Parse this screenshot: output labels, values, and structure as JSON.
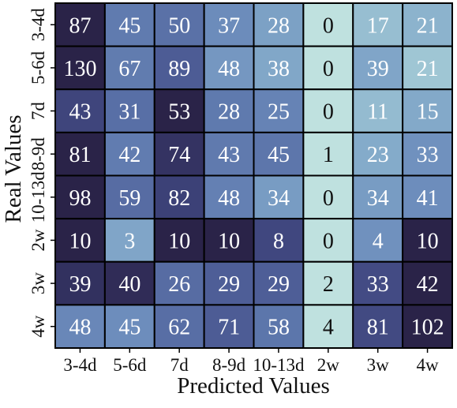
{
  "chart_data": {
    "type": "heatmap",
    "title": "",
    "xlabel": "Predicted Values",
    "ylabel": "Real Values",
    "x_categories": [
      "3-4d",
      "5-6d",
      "7d",
      "8-9d",
      "10-13d",
      "2w",
      "3w",
      "4w"
    ],
    "y_categories": [
      "3-4d",
      "5-6d",
      "7d",
      "8-9d",
      "10-13d",
      "2w",
      "3w",
      "4w"
    ],
    "values": [
      [
        87,
        45,
        50,
        37,
        28,
        0,
        17,
        21
      ],
      [
        130,
        67,
        89,
        48,
        38,
        0,
        39,
        21
      ],
      [
        43,
        31,
        53,
        28,
        25,
        0,
        11,
        15
      ],
      [
        81,
        42,
        74,
        43,
        45,
        1,
        23,
        33
      ],
      [
        98,
        59,
        82,
        48,
        34,
        0,
        34,
        41
      ],
      [
        10,
        3,
        10,
        10,
        8,
        0,
        4,
        10
      ],
      [
        39,
        40,
        26,
        29,
        29,
        2,
        33,
        42
      ],
      [
        48,
        45,
        62,
        71,
        58,
        4,
        81,
        102
      ]
    ],
    "colormap": {
      "normalization": "per-row",
      "stops": [
        "#bfe1df",
        "#a3cbd6",
        "#82a8c9",
        "#6b8bbb",
        "#5a72a8",
        "#4a5690",
        "#3a3d73",
        "#2a2348"
      ]
    },
    "value_text_color": "#ffffff",
    "value_text_color_light_cells": "#111111",
    "grid_line_color": "#000000"
  }
}
